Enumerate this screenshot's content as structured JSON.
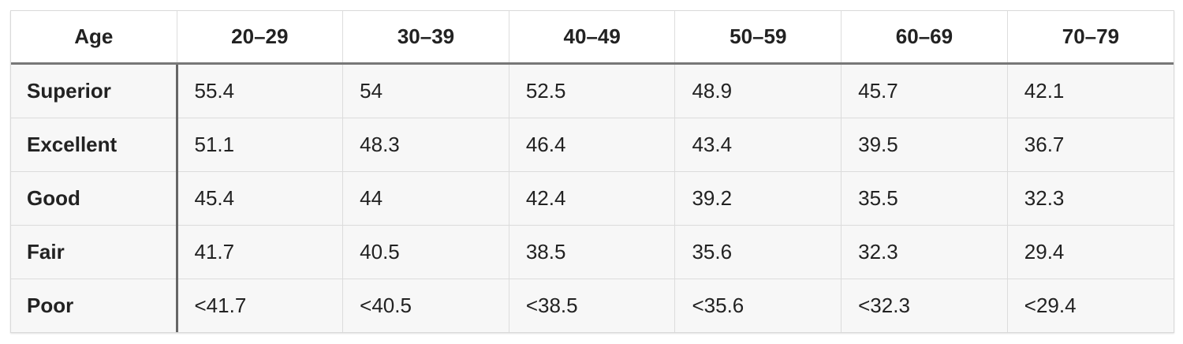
{
  "table": {
    "header": [
      "Age",
      "20–29",
      "30–39",
      "40–49",
      "50–59",
      "60–69",
      "70–79"
    ],
    "rows": [
      [
        "Superior",
        "55.4",
        "54",
        "52.5",
        "48.9",
        "45.7",
        "42.1"
      ],
      [
        "Excellent",
        "51.1",
        "48.3",
        "46.4",
        "43.4",
        "39.5",
        "36.7"
      ],
      [
        "Good",
        "45.4",
        "44",
        "42.4",
        "39.2",
        "35.5",
        "32.3"
      ],
      [
        "Fair",
        "41.7",
        "40.5",
        "38.5",
        "35.6",
        "32.3",
        "29.4"
      ],
      [
        "Poor",
        "<41.7",
        "<40.5",
        "<38.5",
        "<35.6",
        "<32.3",
        "<29.4"
      ]
    ]
  }
}
